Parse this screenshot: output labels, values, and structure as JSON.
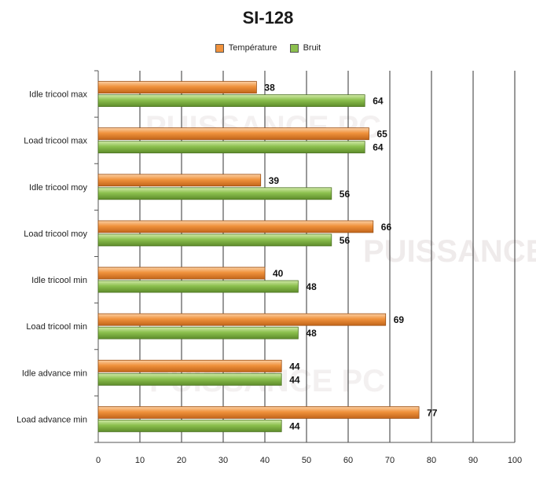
{
  "chart_data": {
    "type": "bar",
    "orientation": "horizontal",
    "title": "SI-128",
    "categories": [
      "Idle tricool max",
      "Load tricool max",
      "Idle tricool moy",
      "Load tricool moy",
      "Idle tricool min",
      "Load tricool min",
      "Idle advance min",
      "Load advance min"
    ],
    "series": [
      {
        "name": "Température",
        "color": "#f0923c",
        "values": [
          38,
          65,
          39,
          66,
          40,
          69,
          44,
          77
        ]
      },
      {
        "name": "Bruit",
        "color": "#8cc04e",
        "values": [
          64,
          64,
          56,
          56,
          48,
          48,
          44,
          44
        ]
      }
    ],
    "xlim": [
      0,
      100
    ],
    "xticks": [
      "0",
      "10",
      "20",
      "30",
      "40",
      "50",
      "60",
      "70",
      "80",
      "90",
      "100"
    ],
    "grid": "vertical",
    "legend_position": "top",
    "watermark": "PUISSANCE PC"
  }
}
